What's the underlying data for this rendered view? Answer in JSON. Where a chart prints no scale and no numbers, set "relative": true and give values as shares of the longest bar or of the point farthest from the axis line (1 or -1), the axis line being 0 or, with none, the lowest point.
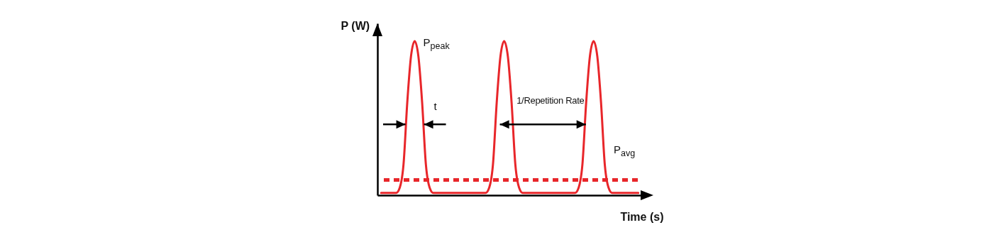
{
  "chart_data": {
    "type": "line",
    "relative": true,
    "xlabel": "Time (s)",
    "ylabel": "P (W)",
    "tick_labels": false,
    "grid": false,
    "legend": false,
    "categories": [
      null,
      null,
      null,
      null,
      null,
      null,
      null,
      null,
      null,
      null,
      null,
      null,
      null,
      null,
      null,
      null,
      null,
      null,
      null,
      null,
      null,
      null,
      null,
      null,
      null,
      null,
      null,
      null,
      null,
      null,
      null,
      null,
      null,
      null,
      null,
      null,
      null,
      null,
      null,
      null,
      null,
      null,
      null,
      null,
      null,
      null,
      null,
      null,
      null,
      null,
      null,
      null,
      null,
      null,
      null,
      null,
      null,
      null,
      null,
      null,
      null,
      null,
      null,
      null,
      null,
      null,
      null,
      null,
      null,
      null
    ],
    "series": [
      {
        "color": "#e8262a",
        "values": [
          0.015,
          0.015,
          0.015,
          0.015,
          0.015,
          0.05,
          0.2,
          0.6,
          0.9,
          1,
          0.9,
          0.6,
          0.2,
          0.05,
          0.015,
          0.015,
          0.015,
          0.015,
          0.015,
          0.015,
          0.015,
          0.015,
          0.015,
          0.015,
          0.015,
          0.015,
          0.015,
          0.015,
          0.015,
          0.05,
          0.2,
          0.6,
          0.9,
          1,
          0.9,
          0.6,
          0.2,
          0.05,
          0.015,
          0.015,
          0.015,
          0.015,
          0.015,
          0.015,
          0.015,
          0.015,
          0.015,
          0.015,
          0.015,
          0.015,
          0.015,
          0.015,
          0.015,
          0.05,
          0.2,
          0.6,
          0.9,
          1,
          0.9,
          0.6,
          0.2,
          0.05,
          0.015,
          0.015,
          0.015,
          0.015,
          0.015,
          0.015,
          0.015,
          0.015
        ]
      }
    ],
    "ref_lines": [
      {
        "axis": "y",
        "value": 0.1,
        "label": "P$_{avg}$",
        "color": "#e8262a",
        "line_style": "dashed"
      }
    ],
    "annotations": [
      "P$_{peak}$",
      "t",
      "1/Repetition Rate"
    ]
  }
}
